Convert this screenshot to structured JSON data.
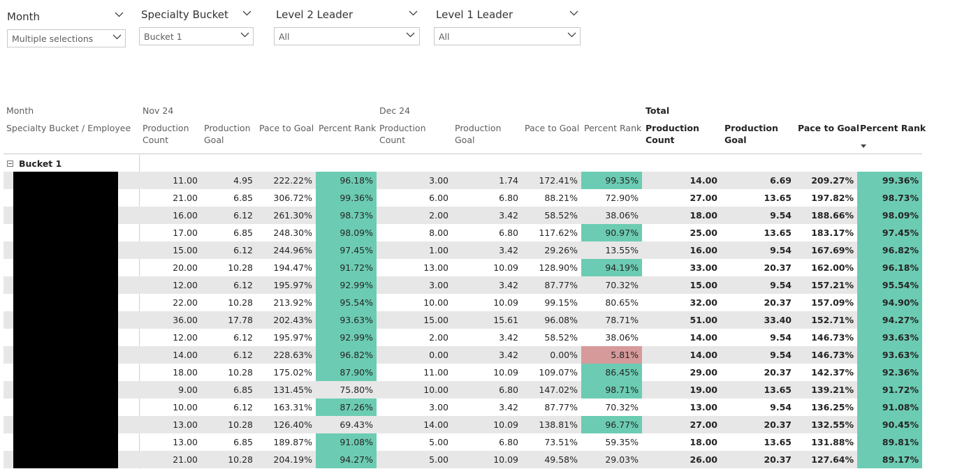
{
  "slicers": {
    "month": {
      "title": "Month",
      "value": "Multiple selections"
    },
    "specialty": {
      "title": "Specialty Bucket",
      "value": "Bucket 1"
    },
    "level2": {
      "title": "Level 2 Leader",
      "value": "All"
    },
    "level1": {
      "title": "Level 1 Leader",
      "value": "All"
    }
  },
  "matrix": {
    "row_headers": {
      "month": "Month",
      "hierarchy": "Specialty Bucket / Employee"
    },
    "groups": {
      "nov": "Nov 24",
      "dec": "Dec 24",
      "total": "Total"
    },
    "measures": {
      "count": "Production Count",
      "goal": "Production Goal",
      "pace": "Pace to Goal",
      "rank": "Percent Rank"
    },
    "bucket_label": "Bucket 1",
    "colors": {
      "green": "#6cccb3",
      "pink": "#d69a9b",
      "alt_row": "#e7e7e7"
    },
    "rows": [
      {
        "nov": [
          "11.00",
          "4.95",
          "222.22%",
          "96.18%"
        ],
        "dec": [
          "3.00",
          "1.74",
          "172.41%",
          "99.35%"
        ],
        "tot": [
          "14.00",
          "6.69",
          "209.27%",
          "99.36%"
        ],
        "hl": [
          "g",
          "g"
        ]
      },
      {
        "nov": [
          "21.00",
          "6.85",
          "306.72%",
          "99.36%"
        ],
        "dec": [
          "6.00",
          "6.80",
          "88.21%",
          "72.90%"
        ],
        "tot": [
          "27.00",
          "13.65",
          "197.82%",
          "98.73%"
        ],
        "hl": [
          "g",
          ""
        ]
      },
      {
        "nov": [
          "16.00",
          "6.12",
          "261.30%",
          "98.73%"
        ],
        "dec": [
          "2.00",
          "3.42",
          "58.52%",
          "38.06%"
        ],
        "tot": [
          "18.00",
          "9.54",
          "188.66%",
          "98.09%"
        ],
        "hl": [
          "g",
          ""
        ]
      },
      {
        "nov": [
          "17.00",
          "6.85",
          "248.30%",
          "98.09%"
        ],
        "dec": [
          "8.00",
          "6.80",
          "117.62%",
          "90.97%"
        ],
        "tot": [
          "25.00",
          "13.65",
          "183.17%",
          "97.45%"
        ],
        "hl": [
          "g",
          "g"
        ]
      },
      {
        "nov": [
          "15.00",
          "6.12",
          "244.96%",
          "97.45%"
        ],
        "dec": [
          "1.00",
          "3.42",
          "29.26%",
          "13.55%"
        ],
        "tot": [
          "16.00",
          "9.54",
          "167.69%",
          "96.82%"
        ],
        "hl": [
          "g",
          ""
        ]
      },
      {
        "nov": [
          "20.00",
          "10.28",
          "194.47%",
          "91.72%"
        ],
        "dec": [
          "13.00",
          "10.09",
          "128.90%",
          "94.19%"
        ],
        "tot": [
          "33.00",
          "20.37",
          "162.00%",
          "96.18%"
        ],
        "hl": [
          "g",
          "g"
        ]
      },
      {
        "nov": [
          "12.00",
          "6.12",
          "195.97%",
          "92.99%"
        ],
        "dec": [
          "3.00",
          "3.42",
          "87.77%",
          "70.32%"
        ],
        "tot": [
          "15.00",
          "9.54",
          "157.21%",
          "95.54%"
        ],
        "hl": [
          "g",
          ""
        ]
      },
      {
        "nov": [
          "22.00",
          "10.28",
          "213.92%",
          "95.54%"
        ],
        "dec": [
          "10.00",
          "10.09",
          "99.15%",
          "80.65%"
        ],
        "tot": [
          "32.00",
          "20.37",
          "157.09%",
          "94.90%"
        ],
        "hl": [
          "g",
          ""
        ]
      },
      {
        "nov": [
          "36.00",
          "17.78",
          "202.43%",
          "93.63%"
        ],
        "dec": [
          "15.00",
          "15.61",
          "96.08%",
          "78.71%"
        ],
        "tot": [
          "51.00",
          "33.40",
          "152.71%",
          "94.27%"
        ],
        "hl": [
          "g",
          ""
        ]
      },
      {
        "nov": [
          "12.00",
          "6.12",
          "195.97%",
          "92.99%"
        ],
        "dec": [
          "2.00",
          "3.42",
          "58.52%",
          "38.06%"
        ],
        "tot": [
          "14.00",
          "9.54",
          "146.73%",
          "93.63%"
        ],
        "hl": [
          "g",
          ""
        ]
      },
      {
        "nov": [
          "14.00",
          "6.12",
          "228.63%",
          "96.82%"
        ],
        "dec": [
          "0.00",
          "3.42",
          "0.00%",
          "5.81%"
        ],
        "tot": [
          "14.00",
          "9.54",
          "146.73%",
          "93.63%"
        ],
        "hl": [
          "g",
          "p"
        ]
      },
      {
        "nov": [
          "18.00",
          "10.28",
          "175.02%",
          "87.90%"
        ],
        "dec": [
          "11.00",
          "10.09",
          "109.07%",
          "86.45%"
        ],
        "tot": [
          "29.00",
          "20.37",
          "142.37%",
          "92.36%"
        ],
        "hl": [
          "g",
          "g"
        ]
      },
      {
        "nov": [
          "9.00",
          "6.85",
          "131.45%",
          "75.80%"
        ],
        "dec": [
          "10.00",
          "6.80",
          "147.02%",
          "98.71%"
        ],
        "tot": [
          "19.00",
          "13.65",
          "139.21%",
          "91.72%"
        ],
        "hl": [
          "",
          "g"
        ]
      },
      {
        "nov": [
          "10.00",
          "6.12",
          "163.31%",
          "87.26%"
        ],
        "dec": [
          "3.00",
          "3.42",
          "87.77%",
          "70.32%"
        ],
        "tot": [
          "13.00",
          "9.54",
          "136.25%",
          "91.08%"
        ],
        "hl": [
          "g",
          ""
        ]
      },
      {
        "nov": [
          "13.00",
          "10.28",
          "126.40%",
          "69.43%"
        ],
        "dec": [
          "14.00",
          "10.09",
          "138.81%",
          "96.77%"
        ],
        "tot": [
          "27.00",
          "20.37",
          "132.55%",
          "90.45%"
        ],
        "hl": [
          "",
          "g"
        ]
      },
      {
        "nov": [
          "13.00",
          "6.85",
          "189.87%",
          "91.08%"
        ],
        "dec": [
          "5.00",
          "6.80",
          "73.51%",
          "59.35%"
        ],
        "tot": [
          "18.00",
          "13.65",
          "131.88%",
          "89.81%"
        ],
        "hl": [
          "g",
          ""
        ]
      },
      {
        "nov": [
          "21.00",
          "10.28",
          "204.19%",
          "94.27%"
        ],
        "dec": [
          "5.00",
          "10.09",
          "49.58%",
          "29.03%"
        ],
        "tot": [
          "26.00",
          "20.37",
          "127.64%",
          "89.17%"
        ],
        "hl": [
          "g",
          ""
        ]
      }
    ]
  }
}
